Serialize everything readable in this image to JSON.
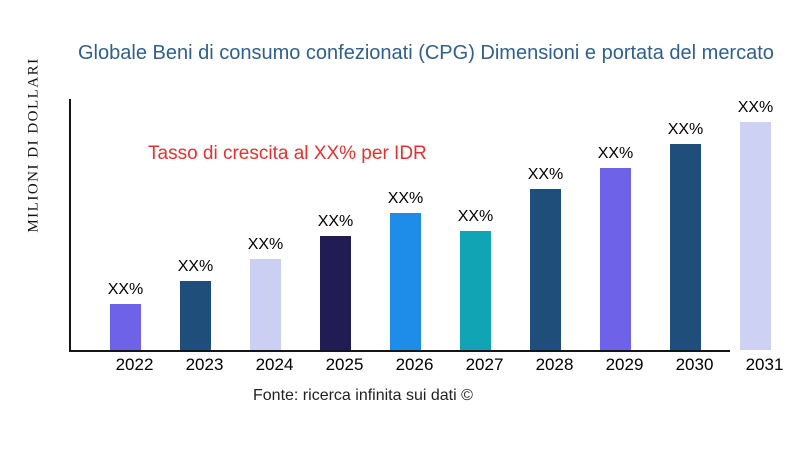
{
  "chart_data": {
    "type": "bar",
    "title": "Globale Beni di consumo confezionati (CPG) Dimensioni e portata del mercato",
    "ylabel": "MILIONI DI DOLLARI",
    "xlabel": "",
    "categories": [
      "2022",
      "2023",
      "2024",
      "2025",
      "2026",
      "2027",
      "2028",
      "2029",
      "2030",
      "2031"
    ],
    "values": [
      20.2,
      30.3,
      39.9,
      50.0,
      60.1,
      52.2,
      70.6,
      79.8,
      90.4,
      100.0
    ],
    "ylim": [
      0,
      100
    ],
    "bar_labels": [
      "XX%",
      "XX%",
      "XX%",
      "XX%",
      "XX%",
      "XX%",
      "XX%",
      "XX%",
      "XX%",
      "XX%"
    ],
    "bar_colors": [
      "#6e63e8",
      "#1f4e7a",
      "#cbcff2",
      "#221c55",
      "#1e8ce9",
      "#10a4b4",
      "#1f4e7a",
      "#6e63e8",
      "#1f4e7a",
      "#cdd1f3"
    ],
    "annotation": "Tasso di crescita al XX% per IDR",
    "annotation_color": "#e53130",
    "title_color": "#2f5f8f",
    "axis_color": "#151515",
    "source": "Fonte: ricerca infinita sui dati ©",
    "grid": false,
    "legend": false
  }
}
